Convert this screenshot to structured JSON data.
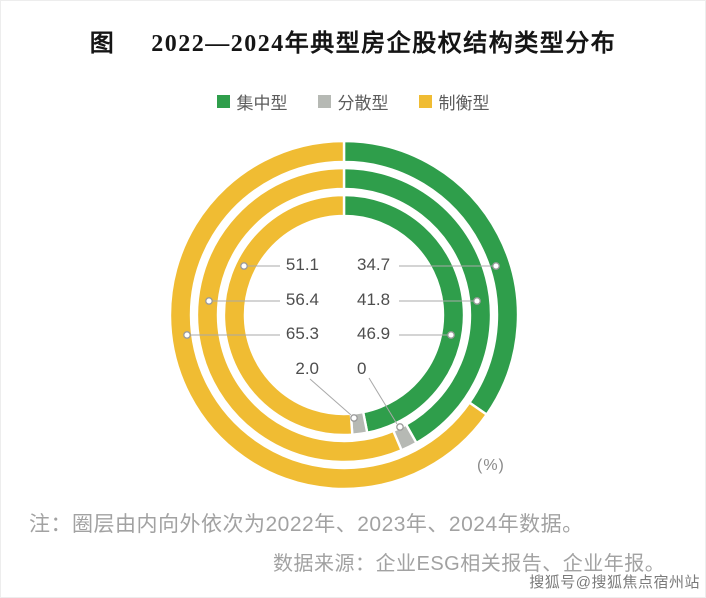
{
  "page": {
    "title_prefix": "图",
    "title": "2022—2024年典型房企股权结构类型分布",
    "note": "注：圈层由内向外依次为2022年、2023年、2024年数据。",
    "source": "数据来源：企业ESG相关报告、企业年报。",
    "watermark": "搜狐号@搜狐焦点宿州站",
    "unit_label": "(%)"
  },
  "legend": [
    {
      "label": "集中型",
      "color": "#2f9e4b"
    },
    {
      "label": "分散型",
      "color": "#b6b9b4"
    },
    {
      "label": "制衡型",
      "color": "#f0bc33"
    }
  ],
  "callouts": {
    "left": [
      "51.1",
      "56.4",
      "65.3",
      "2.0"
    ],
    "right": [
      "34.7",
      "41.8",
      "46.9",
      "0"
    ]
  },
  "chart_data": {
    "type": "pie",
    "subtype": "multi-ring-donut",
    "title": "2022—2024年典型房企股权结构类型分布",
    "unit": "%",
    "rings_note": "圈层由内向外依次为2022年、2023年、2024年数据",
    "categories": [
      "集中型",
      "分散型",
      "制衡型"
    ],
    "colors": [
      "#2f9e4b",
      "#b6b9b4",
      "#f0bc33"
    ],
    "rings": [
      {
        "year": "2022",
        "ring": "inner",
        "values": [
          46.9,
          2.0,
          51.1
        ]
      },
      {
        "year": "2023",
        "ring": "middle",
        "values": [
          41.8,
          1.8,
          56.4
        ]
      },
      {
        "year": "2024",
        "ring": "outer",
        "values": [
          34.7,
          0,
          65.3
        ]
      }
    ],
    "legend_position": "top",
    "start_angle_deg": 0,
    "direction": "集中型 clockwise from 12 o'clock, 制衡型 fills remainder counter-clockwise"
  }
}
